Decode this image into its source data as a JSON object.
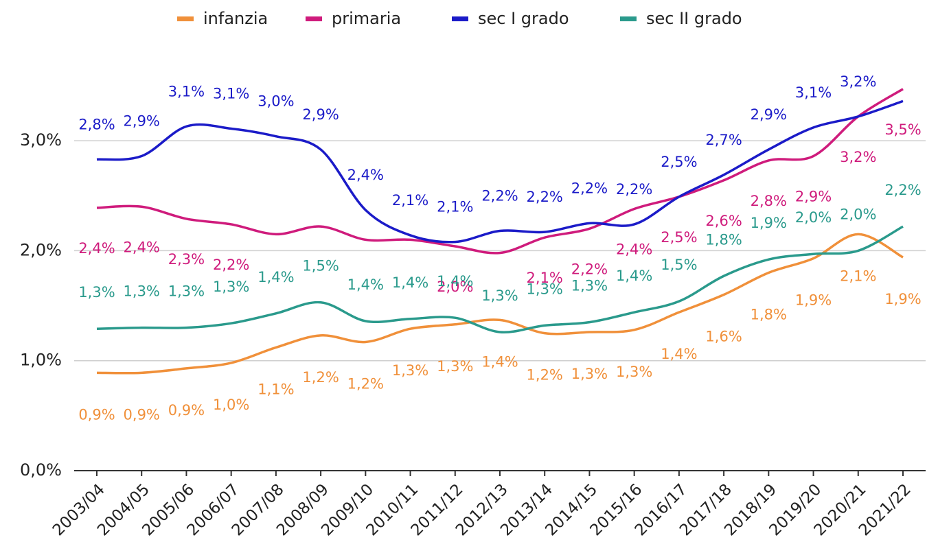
{
  "chart_data": {
    "type": "line",
    "categories": [
      "2003/04",
      "2004/05",
      "2005/06",
      "2006/07",
      "2007/08",
      "2008/09",
      "2009/10",
      "2010/11",
      "2011/12",
      "2012/13",
      "2013/14",
      "2014/15",
      "2015/16",
      "2016/17",
      "2017/18",
      "2018/19",
      "2019/20",
      "2020/21",
      "2021/22"
    ],
    "ylim": [
      0,
      3.6
    ],
    "yticks": [
      {
        "value": 0,
        "label": "0,0%"
      },
      {
        "value": 1,
        "label": "1,0%"
      },
      {
        "value": 2,
        "label": "2,0%"
      },
      {
        "value": 3,
        "label": "3,0%"
      }
    ],
    "grid": true,
    "legend": "top",
    "series": [
      {
        "name": "infanzia",
        "color": "#f0903a",
        "values": [
          0.89,
          0.89,
          0.93,
          0.98,
          1.12,
          1.23,
          1.17,
          1.29,
          1.33,
          1.37,
          1.25,
          1.26,
          1.28,
          1.44,
          1.6,
          1.8,
          1.93,
          2.15,
          1.94
        ],
        "value_labels": [
          "0,9%",
          "0,9%",
          "0,9%",
          "1,0%",
          "1,1%",
          "1,2%",
          "1,2%",
          "1,3%",
          "1,3%",
          "1,4%",
          "1,2%",
          "1,3%",
          "1,3%",
          "1,4%",
          "1,6%",
          "1,8%",
          "1,9%",
          "2,1%",
          "1,9%"
        ]
      },
      {
        "name": "primaria",
        "color": "#cf1b7c",
        "values": [
          2.39,
          2.4,
          2.29,
          2.24,
          2.15,
          2.22,
          2.1,
          2.1,
          2.04,
          1.98,
          2.12,
          2.2,
          2.38,
          2.49,
          2.64,
          2.82,
          2.86,
          3.22,
          3.47
        ],
        "value_labels": [
          "2,4%",
          "2,4%",
          "2,3%",
          "2,2%",
          null,
          null,
          null,
          null,
          "2,0%",
          null,
          "2,1%",
          "2,2%",
          "2,4%",
          "2,5%",
          "2,6%",
          "2,8%",
          "2,9%",
          "3,2%",
          "3,5%"
        ]
      },
      {
        "name": "sec I grado",
        "color": "#1b1bc8",
        "values": [
          2.83,
          2.86,
          3.13,
          3.11,
          3.04,
          2.92,
          2.37,
          2.14,
          2.08,
          2.18,
          2.17,
          2.25,
          2.24,
          2.49,
          2.69,
          2.92,
          3.12,
          3.22,
          3.36
        ],
        "value_labels": [
          "2,8%",
          "2,9%",
          "3,1%",
          "3,1%",
          "3,0%",
          "2,9%",
          "2,4%",
          "2,1%",
          "2,1%",
          "2,2%",
          "2,2%",
          "2,2%",
          "2,2%",
          "2,5%",
          "2,7%",
          "2,9%",
          "3,1%",
          "3,2%",
          null
        ]
      },
      {
        "name": "sec II grado",
        "color": "#2a9a8c",
        "values": [
          1.29,
          1.3,
          1.3,
          1.34,
          1.43,
          1.53,
          1.36,
          1.38,
          1.39,
          1.26,
          1.32,
          1.35,
          1.44,
          1.54,
          1.77,
          1.92,
          1.97,
          2.0,
          2.22
        ],
        "value_labels": [
          "1,3%",
          "1,3%",
          "1,3%",
          "1,3%",
          "1,4%",
          "1,5%",
          "1,4%",
          "1,4%",
          "1,4%",
          "1,3%",
          "1,3%",
          "1,3%",
          "1,4%",
          "1,5%",
          "1,8%",
          "1,9%",
          "2,0%",
          "2,0%",
          "2,2%"
        ]
      }
    ]
  }
}
